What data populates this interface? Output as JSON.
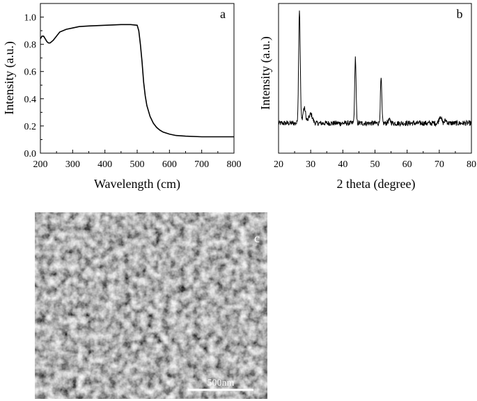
{
  "chart_data": [
    {
      "panel": "a",
      "type": "line",
      "xlabel": "Wavelength (cm)",
      "ylabel": "Intensity (a.u.)",
      "xlim": [
        200,
        800
      ],
      "ylim": [
        0,
        1.1
      ],
      "xticks": [
        200,
        300,
        400,
        500,
        600,
        700,
        800
      ],
      "yticks": [
        0.0,
        0.2,
        0.4,
        0.6,
        0.8,
        1.0
      ],
      "xtick_labels": [
        "200",
        "300",
        "400",
        "500",
        "600",
        "700",
        "800"
      ],
      "ytick_labels": [
        "0.0",
        "0.2",
        "0.4",
        "0.6",
        "0.8",
        "1.0"
      ],
      "series": [
        {
          "x": [
            200,
            205,
            210,
            215,
            220,
            225,
            230,
            240,
            250,
            260,
            280,
            300,
            320,
            350,
            400,
            450,
            480,
            500,
            505,
            510,
            515,
            520,
            525,
            530,
            540,
            550,
            560,
            570,
            580,
            600,
            620,
            650,
            700,
            750,
            800
          ],
          "y": [
            0.84,
            0.86,
            0.86,
            0.84,
            0.82,
            0.81,
            0.81,
            0.83,
            0.86,
            0.89,
            0.91,
            0.92,
            0.93,
            0.935,
            0.94,
            0.945,
            0.945,
            0.94,
            0.9,
            0.8,
            0.67,
            0.52,
            0.42,
            0.35,
            0.27,
            0.22,
            0.19,
            0.17,
            0.155,
            0.14,
            0.13,
            0.125,
            0.12,
            0.12,
            0.12
          ]
        }
      ]
    },
    {
      "panel": "b",
      "type": "line",
      "xlabel": "2 theta (degree)",
      "ylabel": "Intensity (a.u.)",
      "xlim": [
        20,
        80
      ],
      "ylim": [
        0,
        1.0
      ],
      "xticks": [
        20,
        30,
        40,
        50,
        60,
        70,
        80
      ],
      "xtick_labels": [
        "20",
        "30",
        "40",
        "50",
        "60",
        "70",
        "80"
      ],
      "baseline": 0.2,
      "peaks": [
        {
          "x": 26.5,
          "height": 0.96,
          "width": 0.35
        },
        {
          "x": 28.0,
          "height": 0.3,
          "width": 0.6
        },
        {
          "x": 30.0,
          "height": 0.26,
          "width": 0.8
        },
        {
          "x": 43.9,
          "height": 0.64,
          "width": 0.3
        },
        {
          "x": 51.9,
          "height": 0.5,
          "width": 0.3
        },
        {
          "x": 54.5,
          "height": 0.22,
          "width": 0.6
        },
        {
          "x": 70.3,
          "height": 0.25,
          "width": 0.5
        },
        {
          "x": 72.0,
          "height": 0.22,
          "width": 0.5
        }
      ]
    }
  ],
  "panels": {
    "a": {
      "label": "a"
    },
    "b": {
      "label": "b"
    },
    "c": {
      "label": "c",
      "scale_bar": "500nm"
    }
  }
}
